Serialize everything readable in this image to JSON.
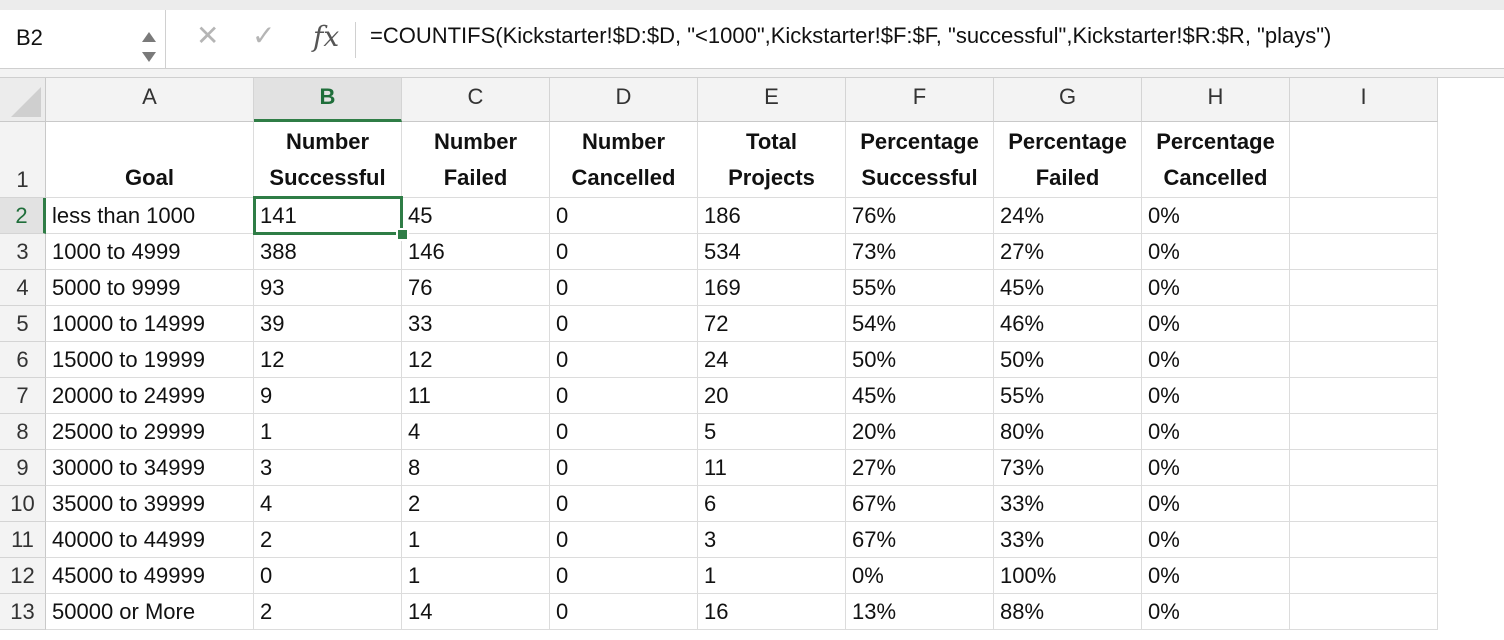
{
  "formula_bar": {
    "name_box": "B2",
    "cancel_icon": "close-icon",
    "confirm_icon": "check-icon",
    "fx_label": "fx",
    "formula": "=COUNTIFS(Kickstarter!$D:$D, \"<1000\",Kickstarter!$F:$F, \"successful\",Kickstarter!$R:$R, \"plays\")"
  },
  "columns": [
    "A",
    "B",
    "C",
    "D",
    "E",
    "F",
    "G",
    "H",
    "I"
  ],
  "selected_column": "B",
  "rows": [
    "1",
    "2",
    "3",
    "4",
    "5",
    "6",
    "7",
    "8",
    "9",
    "10",
    "11",
    "12",
    "13"
  ],
  "selected_row": "2",
  "active_cell": "B2",
  "header_row": [
    "Goal",
    "Number Successful",
    "Number Failed",
    "Number Cancelled",
    "Total Projects",
    "Percentage Successful",
    "Percentage Failed",
    "Percentage Cancelled",
    ""
  ],
  "data_rows": [
    [
      "less than 1000",
      "141",
      "45",
      "0",
      "186",
      "76%",
      "24%",
      "0%",
      ""
    ],
    [
      "1000 to 4999",
      "388",
      "146",
      "0",
      "534",
      "73%",
      "27%",
      "0%",
      ""
    ],
    [
      "5000 to 9999",
      "93",
      "76",
      "0",
      "169",
      "55%",
      "45%",
      "0%",
      ""
    ],
    [
      "10000 to 14999",
      "39",
      "33",
      "0",
      "72",
      "54%",
      "46%",
      "0%",
      ""
    ],
    [
      "15000 to 19999",
      "12",
      "12",
      "0",
      "24",
      "50%",
      "50%",
      "0%",
      ""
    ],
    [
      "20000 to 24999",
      "9",
      "11",
      "0",
      "20",
      "45%",
      "55%",
      "0%",
      ""
    ],
    [
      "25000 to 29999",
      "1",
      "4",
      "0",
      "5",
      "20%",
      "80%",
      "0%",
      ""
    ],
    [
      "30000 to 34999",
      "3",
      "8",
      "0",
      "11",
      "27%",
      "73%",
      "0%",
      ""
    ],
    [
      "35000 to 39999",
      "4",
      "2",
      "0",
      "6",
      "67%",
      "33%",
      "0%",
      ""
    ],
    [
      "40000 to 44999",
      "2",
      "1",
      "0",
      "3",
      "67%",
      "33%",
      "0%",
      ""
    ],
    [
      "45000 to 49999",
      "0",
      "1",
      "0",
      "1",
      "0%",
      "100%",
      "0%",
      ""
    ],
    [
      "50000 or More",
      "2",
      "14",
      "0",
      "16",
      "13%",
      "88%",
      "0%",
      ""
    ]
  ],
  "colors": {
    "selection_accent": "#2f7d46",
    "header_bg": "#f3f3f3",
    "gridline": "#dcdcdc"
  }
}
